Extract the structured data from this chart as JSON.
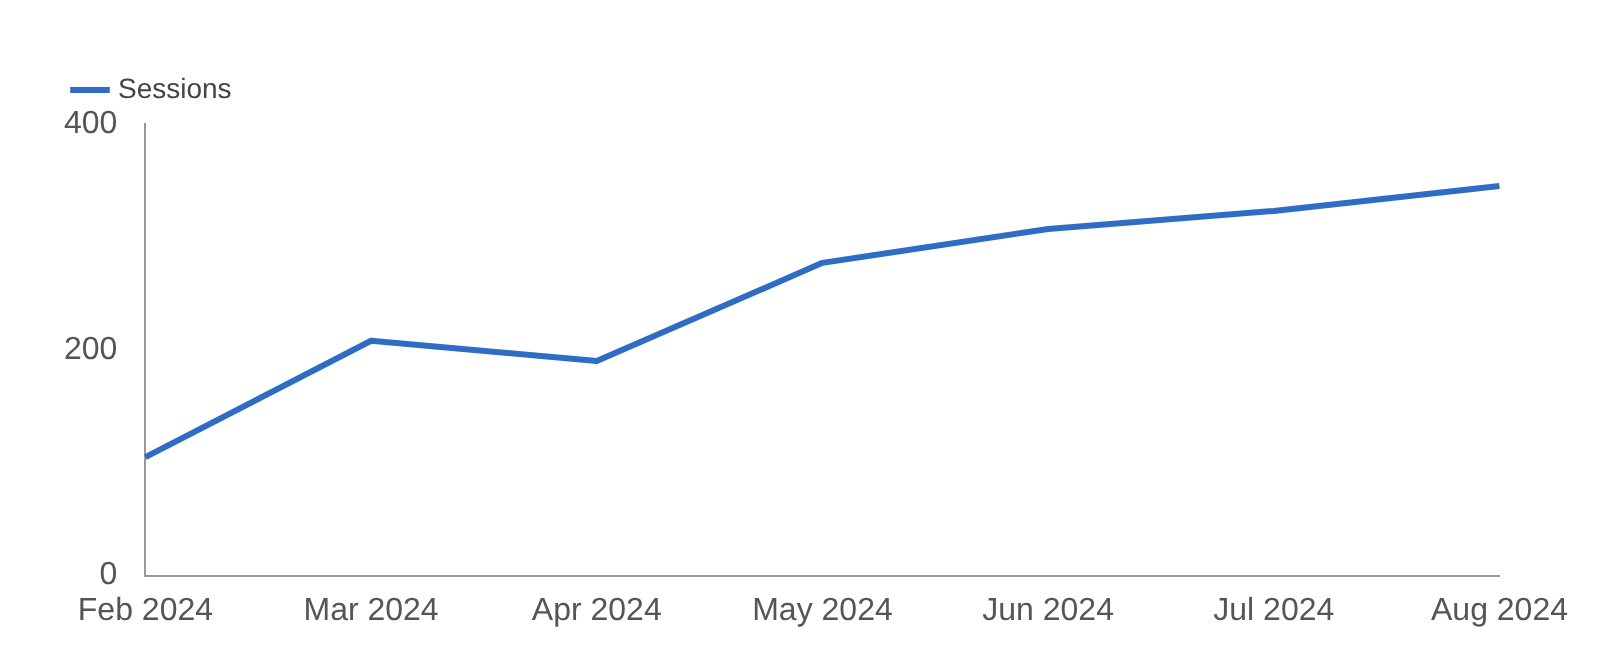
{
  "chart_data": {
    "type": "line",
    "categories": [
      "Feb 2024",
      "Mar 2024",
      "Apr 2024",
      "May 2024",
      "Jun 2024",
      "Jul 2024",
      "Aug 2024"
    ],
    "series": [
      {
        "name": "Sessions",
        "color": "#2f6cc4",
        "values": [
          105,
          208,
          190,
          277,
          307,
          323,
          345
        ]
      }
    ],
    "ylim": [
      0,
      400
    ],
    "yticks": [
      0,
      200,
      400
    ],
    "grid": false,
    "legend": "top left",
    "marker": "none"
  }
}
